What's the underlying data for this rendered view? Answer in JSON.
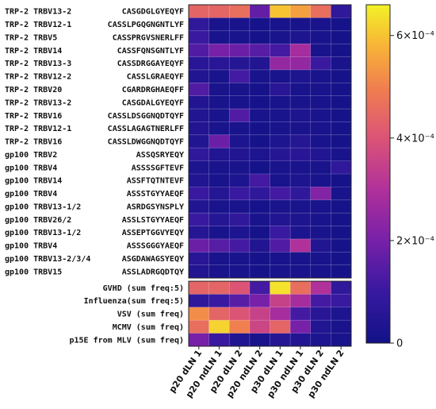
{
  "chart_data": {
    "type": "heatmap",
    "title": "",
    "xlabel": "",
    "ylabel": "",
    "columns": [
      "p20 dLN 1",
      "p20 ndLN 1",
      "p20 dLN 2",
      "p20 ndLN 2",
      "p30 dLN 1",
      "p30 ndLN 1",
      "p30 dLN 2",
      "p30 ndLN 2"
    ],
    "rows": [
      {
        "group": "TRP-2",
        "v": "TRBV13-2",
        "cdr3": "CASGDGLGYEQYF",
        "values": [
          0.00044,
          0.00044,
          0.00046,
          0.00017,
          0.0006,
          0.00055,
          0.00046,
          8e-05
        ]
      },
      {
        "group": "TRP-2",
        "v": "TRBV12-1",
        "cdr3": "CASSLPGQGNGNTLYF",
        "values": [
          8e-05,
          2e-05,
          2e-05,
          1e-05,
          2e-05,
          2e-05,
          2e-05,
          1e-05
        ]
      },
      {
        "group": "TRP-2",
        "v": "TRBV5",
        "cdr3": "CASSPRGVSNERLFF",
        "values": [
          0.0001,
          2e-05,
          2e-05,
          1e-05,
          2e-05,
          3e-05,
          2e-05,
          1e-05
        ]
      },
      {
        "group": "TRP-2",
        "v": "TRBV14",
        "cdr3": "CASSFQNSGNTLYF",
        "values": [
          0.00014,
          0.0002,
          0.00018,
          0.00015,
          0.00012,
          0.00028,
          2e-05,
          1e-05
        ]
      },
      {
        "group": "TRP-2",
        "v": "TRBV13-3",
        "cdr3": "CASSDRGGAYEQYF",
        "values": [
          6e-05,
          6e-05,
          5e-05,
          4e-05,
          0.00025,
          0.00025,
          0.0001,
          2e-05
        ]
      },
      {
        "group": "TRP-2",
        "v": "TRBV12-2",
        "cdr3": "CASSLGRAEQYF",
        "values": [
          4e-05,
          2e-05,
          0.00012,
          2e-05,
          2e-05,
          3e-05,
          2e-05,
          1e-05
        ]
      },
      {
        "group": "TRP-2",
        "v": "TRBV20",
        "cdr3": "CGARDRGHAEQFF",
        "values": [
          0.00014,
          2e-05,
          2e-05,
          1e-05,
          6e-05,
          2e-05,
          2e-05,
          1e-05
        ]
      },
      {
        "group": "TRP-2",
        "v": "TRBV13-2",
        "cdr3": "CASGDALGYEQYF",
        "values": [
          4e-05,
          2e-05,
          2e-05,
          1e-05,
          2e-05,
          2e-05,
          2e-05,
          1e-05
        ]
      },
      {
        "group": "TRP-2",
        "v": "TRBV16",
        "cdr3": "CASSLDSGGNQDTQYF",
        "values": [
          4e-05,
          2e-05,
          0.00014,
          2e-05,
          2e-05,
          3e-05,
          2e-05,
          1e-05
        ]
      },
      {
        "group": "TRP-2",
        "v": "TRBV12-1",
        "cdr3": "CASSLAGAGTNERLFF",
        "values": [
          4e-05,
          2e-05,
          2e-05,
          1e-05,
          2e-05,
          2e-05,
          2e-05,
          1e-05
        ]
      },
      {
        "group": "TRP-2",
        "v": "TRBV16",
        "cdr3": "CASSLDWGGNQDTQYF",
        "values": [
          4e-05,
          0.00018,
          3e-05,
          1e-05,
          3e-05,
          5e-05,
          2e-05,
          1e-05
        ]
      },
      {
        "group": "gp100",
        "v": "TRBV2",
        "cdr3": "ASSQSRYEQY",
        "values": [
          8e-05,
          4e-05,
          4e-05,
          3e-05,
          5e-05,
          6e-05,
          4e-05,
          2e-05
        ]
      },
      {
        "group": "gp100",
        "v": "TRBV4",
        "cdr3": "ASSSSGFTEVF",
        "values": [
          3e-05,
          2e-05,
          2e-05,
          1e-05,
          2e-05,
          2e-05,
          2e-05,
          8e-05
        ]
      },
      {
        "group": "gp100",
        "v": "TRBV14",
        "cdr3": "ASSFTQTNTEVF",
        "values": [
          4e-05,
          2e-05,
          3e-05,
          0.00012,
          2e-05,
          3e-05,
          2e-05,
          1e-05
        ]
      },
      {
        "group": "gp100",
        "v": "TRBV4",
        "cdr3": "ASSSTGYYAEQF",
        "values": [
          0.0001,
          5e-05,
          0.0001,
          8e-05,
          0.00012,
          8e-05,
          0.00022,
          2e-05
        ]
      },
      {
        "group": "gp100",
        "v": "TRBV13-1/2",
        "cdr3": "ASRDGSYNSPLY",
        "values": [
          4e-05,
          2e-05,
          2e-05,
          1e-05,
          2e-05,
          2e-05,
          2e-05,
          1e-05
        ]
      },
      {
        "group": "gp100",
        "v": "TRBV26/2",
        "cdr3": "ASSLSTGYYAEQF",
        "values": [
          0.0001,
          5e-05,
          8e-05,
          2e-05,
          4e-05,
          3e-05,
          2e-05,
          1e-05
        ]
      },
      {
        "group": "gp100",
        "v": "TRBV13-1/2",
        "cdr3": "ASSEPTGGVYEQY",
        "values": [
          5e-05,
          2e-05,
          3e-05,
          1e-05,
          0.0001,
          3e-05,
          2e-05,
          1e-05
        ]
      },
      {
        "group": "gp100",
        "v": "TRBV4",
        "cdr3": "ASSSGGGYAEQF",
        "values": [
          0.00018,
          0.00015,
          0.00012,
          4e-05,
          0.00014,
          0.0003,
          4e-05,
          1e-05
        ]
      },
      {
        "group": "gp100",
        "v": "TRBV13-2/3/4",
        "cdr3": "ASGDAWAGSYEQY",
        "values": [
          6e-05,
          2e-05,
          2e-05,
          1e-05,
          2e-05,
          2e-05,
          2e-05,
          1e-05
        ]
      },
      {
        "group": "gp100",
        "v": "TRBV15",
        "cdr3": "ASSLADRGQDTQY",
        "values": [
          4e-05,
          2e-05,
          2e-05,
          1e-05,
          2e-05,
          2e-05,
          2e-05,
          1e-05
        ]
      },
      {
        "label": "GVHD (sum freq:5)",
        "values": [
          0.00044,
          0.00044,
          0.0004,
          0.00012,
          0.00064,
          0.00046,
          0.0003,
          8e-05
        ]
      },
      {
        "label": "Influenza(sum freq:5)",
        "values": [
          8e-05,
          0.0001,
          0.00015,
          0.0002,
          0.00035,
          0.00028,
          0.00012,
          0.0001
        ]
      },
      {
        "label": "VSV (sum freq)",
        "values": [
          0.00052,
          0.00044,
          0.0004,
          0.00035,
          0.00028,
          0.00012,
          6e-05,
          3e-05
        ]
      },
      {
        "label": "MCMV (sum freq)",
        "values": [
          0.00046,
          0.00062,
          0.0005,
          0.00036,
          0.00044,
          0.0002,
          4e-05,
          2e-05
        ]
      },
      {
        "label": "p15E from MLV (sum freq)",
        "values": [
          0.0002,
          0.0001,
          4e-05,
          2e-05,
          5e-05,
          4e-05,
          3e-05,
          2e-05
        ]
      }
    ],
    "colorbar": {
      "min": 0,
      "max": 0.00066,
      "ticks": [
        {
          "value": 0,
          "label": "0"
        },
        {
          "value": 0.0002,
          "label": "2×10⁻⁴"
        },
        {
          "value": 0.0004,
          "label": "4×10⁻⁴"
        },
        {
          "value": 0.0006,
          "label": "6×10⁻⁴"
        }
      ],
      "colormap": "plasma"
    },
    "grid": true
  }
}
